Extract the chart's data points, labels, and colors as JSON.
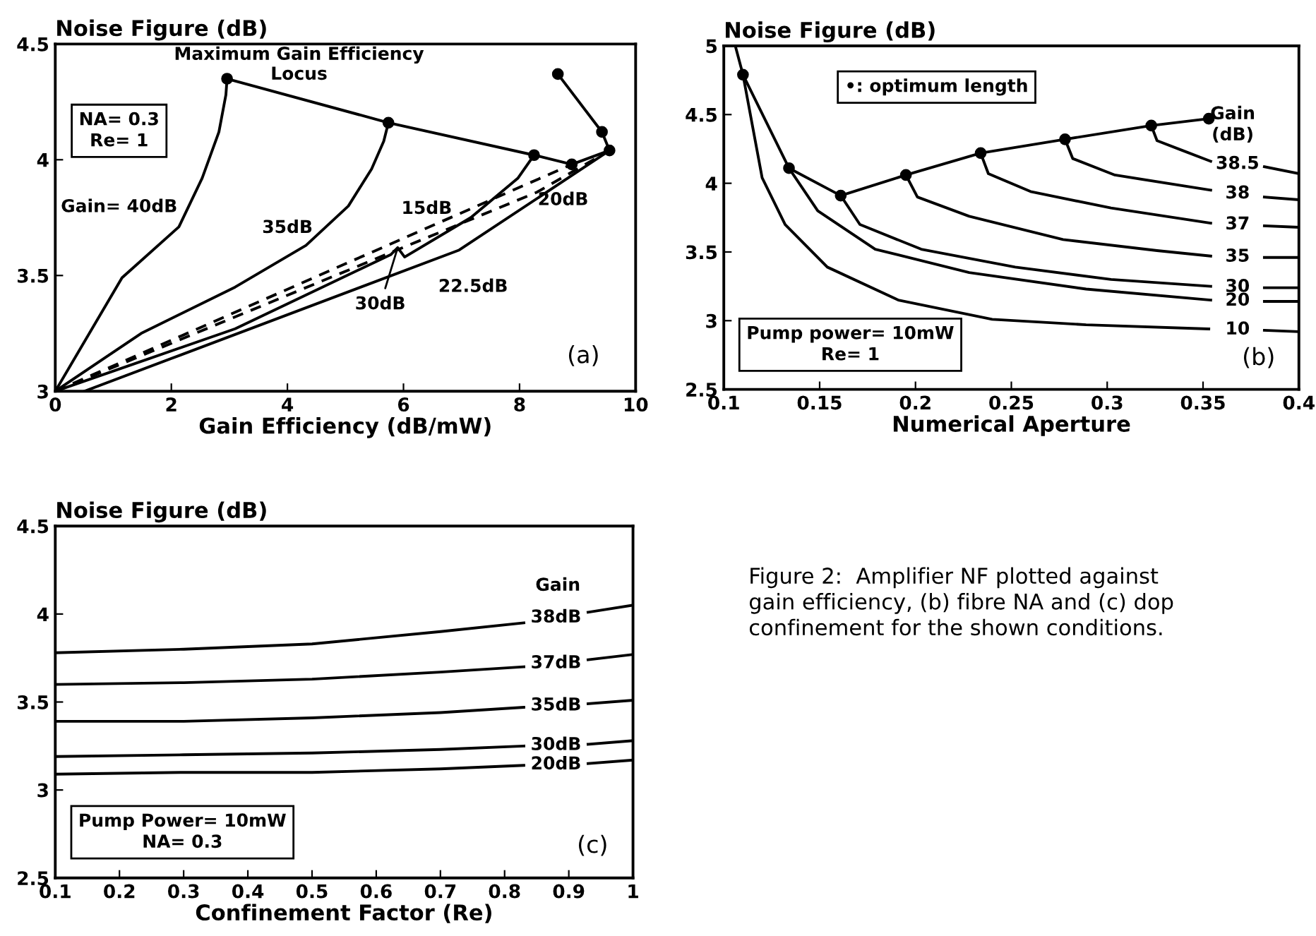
{
  "chart_data": [
    {
      "type": "line",
      "ylabel": "Noise Figure (dB)",
      "xlabel": "Gain Efficiency (dB/mW)",
      "xlim": [
        0,
        10
      ],
      "ylim": [
        3,
        4.5
      ],
      "xticks": [
        0,
        2,
        4,
        6,
        8,
        10
      ],
      "yticks": [
        3,
        3.5,
        4,
        4.5
      ],
      "series": [
        {
          "name": "Maximum Gain Efficiency\nLocus",
          "color": "#000000",
          "marker": "circle",
          "x": [
            2.96,
            5.74,
            8.25,
            8.9,
            9.55,
            9.42,
            8.66
          ],
          "values": [
            4.35,
            4.16,
            4.02,
            3.98,
            4.04,
            4.12,
            4.37
          ]
        },
        {
          "name": "Gain= 40dB",
          "color": "#000000",
          "x": [
            0,
            1.15,
            2.13,
            2.53,
            2.82,
            2.94,
            2.96
          ],
          "values": [
            3.0,
            3.49,
            3.71,
            3.92,
            4.12,
            4.28,
            4.35
          ]
        },
        {
          "name": "35dB",
          "color": "#000000",
          "x": [
            0,
            1.48,
            3.1,
            4.32,
            5.05,
            5.45,
            5.66,
            5.74
          ],
          "values": [
            3.0,
            3.25,
            3.45,
            3.63,
            3.8,
            3.96,
            4.08,
            4.16
          ]
        },
        {
          "name": "30dB",
          "color": "#000000",
          "x": [
            0,
            3.1,
            5.78,
            5.9,
            6.02,
            7.16,
            7.97,
            8.25
          ],
          "values": [
            3.0,
            3.27,
            3.59,
            3.62,
            3.58,
            3.75,
            3.92,
            4.02
          ]
        },
        {
          "name": "22.5dB",
          "color": "#000000",
          "x": [
            0.5,
            6.96,
            9.55
          ],
          "values": [
            3.0,
            3.61,
            4.04
          ]
        },
        {
          "name": "20dB",
          "color": "#000000",
          "line_style": "dashed",
          "x": [
            0,
            8.3,
            9.55
          ],
          "values": [
            3.0,
            3.86,
            4.04
          ]
        },
        {
          "name": "15dB",
          "color": "#000000",
          "line_style": "dashed",
          "x": [
            0,
            8.9
          ],
          "values": [
            3.0,
            3.98
          ]
        }
      ],
      "annotations": [
        "NA= 0.3\nRe= 1",
        "(a)"
      ]
    },
    {
      "type": "line",
      "ylabel": "Noise Figure (dB)",
      "xlabel": "Numerical Aperture",
      "xlim": [
        0.1,
        0.4
      ],
      "ylim": [
        2.5,
        5
      ],
      "xticks": [
        0.1,
        0.15,
        0.2,
        0.25,
        0.3,
        0.35,
        0.4
      ],
      "yticks": [
        2.5,
        3,
        3.5,
        4,
        4.5,
        5
      ],
      "series": [
        {
          "color": "#000000",
          "marker": "circle",
          "x": [
            0.11,
            0.134,
            0.161,
            0.195,
            0.234,
            0.278,
            0.323,
            0.353
          ],
          "values": [
            4.79,
            4.11,
            3.91,
            4.06,
            4.22,
            4.32,
            4.42,
            4.47
          ]
        },
        {
          "name": "10",
          "color": "#000000",
          "x": [
            0.106,
            0.11,
            0.12,
            0.132,
            0.154,
            0.191,
            0.24,
            0.289,
            0.353,
            0.368,
            0.382,
            0.4
          ],
          "values": [
            5.0,
            4.79,
            4.04,
            3.7,
            3.39,
            3.15,
            3.01,
            2.97,
            2.94,
            null,
            2.93,
            2.92
          ]
        },
        {
          "name": "20",
          "color": "#000000",
          "x": [
            0.134,
            0.149,
            0.179,
            0.228,
            0.289,
            0.354,
            0.368,
            0.382,
            0.4
          ],
          "values": [
            4.11,
            3.8,
            3.52,
            3.35,
            3.23,
            3.15,
            null,
            3.14,
            3.14
          ]
        },
        {
          "name": "30",
          "color": "#000000",
          "x": [
            0.161,
            0.171,
            0.203,
            0.252,
            0.302,
            0.354,
            0.368,
            0.382,
            0.4
          ],
          "values": [
            3.91,
            3.7,
            3.52,
            3.39,
            3.3,
            3.25,
            null,
            3.24,
            3.24
          ]
        },
        {
          "name": "35",
          "color": "#000000",
          "x": [
            0.195,
            0.201,
            0.228,
            0.277,
            0.326,
            0.354,
            0.368,
            0.382,
            0.4
          ],
          "values": [
            4.06,
            3.9,
            3.76,
            3.59,
            3.51,
            3.47,
            null,
            3.46,
            3.46
          ]
        },
        {
          "name": "37",
          "color": "#000000",
          "x": [
            0.234,
            0.238,
            0.26,
            0.302,
            0.354,
            0.368,
            0.382,
            0.4
          ],
          "values": [
            4.22,
            4.07,
            3.94,
            3.82,
            3.71,
            null,
            3.69,
            3.68
          ]
        },
        {
          "name": "38",
          "color": "#000000",
          "x": [
            0.278,
            0.282,
            0.304,
            0.354,
            0.368,
            0.382,
            0.4
          ],
          "values": [
            4.32,
            4.18,
            4.06,
            3.95,
            null,
            3.9,
            3.88
          ]
        },
        {
          "name": "38.5",
          "color": "#000000",
          "x": [
            0.323,
            0.326,
            0.339,
            0.354,
            0.368,
            0.382,
            0.4
          ],
          "values": [
            4.42,
            4.31,
            4.24,
            4.16,
            null,
            4.12,
            4.07
          ]
        }
      ],
      "annotations": [
        "Gain\n(dB)",
        "•: optimum length",
        "Pump power= 10mW\nRe= 1",
        "(b)"
      ]
    },
    {
      "type": "line",
      "ylabel": "Noise Figure (dB)",
      "xlabel": "Confinement Factor (Re)",
      "xlim": [
        0.1,
        1
      ],
      "ylim": [
        2.5,
        4.5
      ],
      "xticks": [
        0.1,
        0.2,
        0.3,
        0.4,
        0.5,
        0.6,
        0.7,
        0.8,
        0.9,
        1
      ],
      "yticks": [
        2.5,
        3,
        3.5,
        4,
        4.5
      ],
      "series": [
        {
          "name": "38dB",
          "color": "#000000",
          "x": [
            0.1,
            0.3,
            0.5,
            0.7,
            0.83,
            0.88,
            0.93,
            1.0
          ],
          "values": [
            3.78,
            3.8,
            3.83,
            3.9,
            3.95,
            null,
            4.01,
            4.05
          ]
        },
        {
          "name": "37dB",
          "color": "#000000",
          "x": [
            0.1,
            0.3,
            0.5,
            0.7,
            0.83,
            0.88,
            0.93,
            1.0
          ],
          "values": [
            3.6,
            3.61,
            3.63,
            3.67,
            3.7,
            null,
            3.74,
            3.77
          ]
        },
        {
          "name": "35dB",
          "color": "#000000",
          "x": [
            0.1,
            0.3,
            0.5,
            0.7,
            0.83,
            0.88,
            0.93,
            1.0
          ],
          "values": [
            3.39,
            3.39,
            3.41,
            3.44,
            3.47,
            null,
            3.49,
            3.51
          ]
        },
        {
          "name": "30dB",
          "color": "#000000",
          "x": [
            0.1,
            0.3,
            0.5,
            0.7,
            0.83,
            0.88,
            0.93,
            1.0
          ],
          "values": [
            3.19,
            3.2,
            3.21,
            3.23,
            3.25,
            null,
            3.26,
            3.28
          ]
        },
        {
          "name": "20dB",
          "color": "#000000",
          "x": [
            0.1,
            0.3,
            0.5,
            0.7,
            0.83,
            0.88,
            0.93,
            1.0
          ],
          "values": [
            3.09,
            3.1,
            3.1,
            3.12,
            3.14,
            null,
            3.15,
            3.17
          ]
        }
      ],
      "annotations": [
        "Gain",
        "Pump Power= 10mW\nNA= 0.3",
        "(c)",
        "Figure 2:  Amplifier NF plotted against\ngain efficiency, (b) fibre NA and (c) dop\nconfinement for the shown conditions."
      ]
    }
  ]
}
